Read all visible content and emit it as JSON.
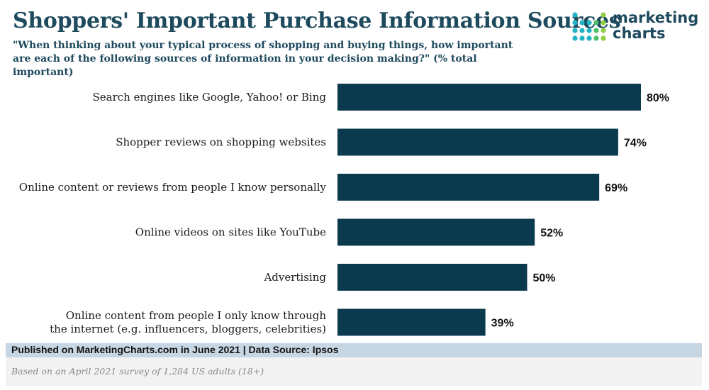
{
  "header": {
    "title": "Shoppers' Important Purchase Information Sources",
    "subtitle": "\"When thinking about your typical process of shopping and buying things, how important are each of the following sources of information in your decision making?\" (% total important)"
  },
  "logo": {
    "line1": "marketing",
    "line2": "charts"
  },
  "chart_data": {
    "type": "bar",
    "orientation": "horizontal",
    "categories": [
      [
        "Search engines like Google, Yahoo! or Bing"
      ],
      [
        "Shopper reviews on shopping websites"
      ],
      [
        "Online content or reviews from people I know personally"
      ],
      [
        "Online videos on sites like YouTube"
      ],
      [
        "Advertising"
      ],
      [
        "Online content from people I only know through",
        "the internet (e.g. influencers, bloggers, celebrities)"
      ]
    ],
    "values": [
      80,
      74,
      69,
      52,
      50,
      39
    ],
    "value_labels": [
      "80%",
      "74%",
      "69%",
      "52%",
      "50%",
      "39%"
    ],
    "xlim": [
      0,
      100
    ],
    "bar_color": "#0b3a4e",
    "grid": false
  },
  "footer": {
    "published": "Published on MarketingCharts.com in June 2021 | Data Source: Ipsos",
    "note": "Based on an April 2021 survey of 1,284 US adults (18+)"
  },
  "colors": {
    "title": "#1e4a5e",
    "bar": "#0b3a4e",
    "footer_band": "#c6d6e3",
    "note_band": "#f2f2f2",
    "logo_dots": [
      "#22b3c4",
      "#4dbf6b",
      "#8fcf3f"
    ]
  }
}
